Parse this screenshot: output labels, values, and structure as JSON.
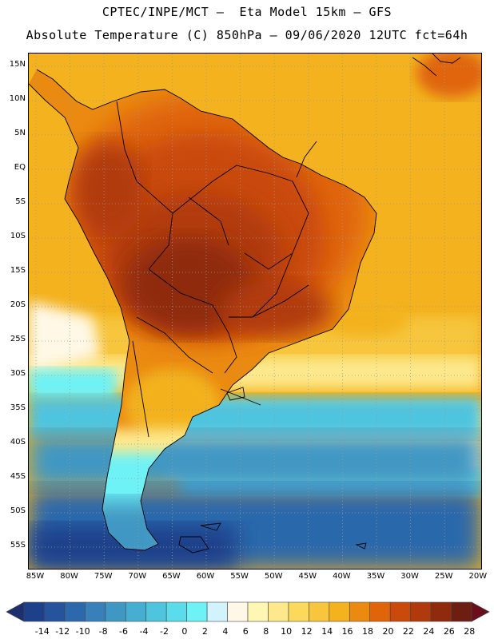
{
  "title_line1": "CPTEC/INPE/MCT –  Eta Model 15km – GFS",
  "title_line2": "Absolute Temperature (C) 850hPa – 09/06/2020 12UTC fct=64h",
  "latitude_labels": [
    "15N",
    "10N",
    "5N",
    "EQ",
    "5S",
    "10S",
    "15S",
    "20S",
    "25S",
    "30S",
    "35S",
    "40S",
    "45S",
    "50S",
    "55S"
  ],
  "longitude_labels": [
    "85W",
    "80W",
    "75W",
    "70W",
    "65W",
    "60W",
    "55W",
    "50W",
    "45W",
    "40W",
    "35W",
    "30W",
    "25W",
    "20W"
  ],
  "colorbar_labels": [
    "-14",
    "-12",
    "-10",
    "-8",
    "-6",
    "-4",
    "-2",
    "0",
    "2",
    "4",
    "6",
    "8",
    "10",
    "12",
    "14",
    "16",
    "18",
    "20",
    "22",
    "24",
    "26",
    "28"
  ],
  "colorbar_colors": [
    "#1e3f8a",
    "#25539c",
    "#2c68ac",
    "#3780b9",
    "#3f97c3",
    "#46aed0",
    "#4fc4df",
    "#5bdcea",
    "#6ef2f5",
    "#d2f3fb",
    "#fff8e6",
    "#fef7b4",
    "#fde98c",
    "#fbd95c",
    "#f7c63c",
    "#f3b21e",
    "#eb8a10",
    "#e0650a",
    "#c94a0a",
    "#b13a0c",
    "#8f2a0c",
    "#6e1e10"
  ],
  "colorbar_end_colors": {
    "low": "#1e2f70",
    "high": "#6a0e1c"
  },
  "map_colors": {
    "ocean_warm": "#f3b21e",
    "ocean_mild": "#f7c63c",
    "ocean_pale": "#fef7b4",
    "ocean_cream": "#fff8e6",
    "ocean_cold1": "#6ef2f5",
    "ocean_cold2": "#4fc4df",
    "ocean_cold3": "#3f97c3",
    "ocean_cold4": "#2c68ac",
    "land_hot": "#8f2a0c",
    "land_warm": "#c94a0a",
    "land_mid": "#e0650a",
    "grid": "#999999",
    "coast": "#000000"
  }
}
